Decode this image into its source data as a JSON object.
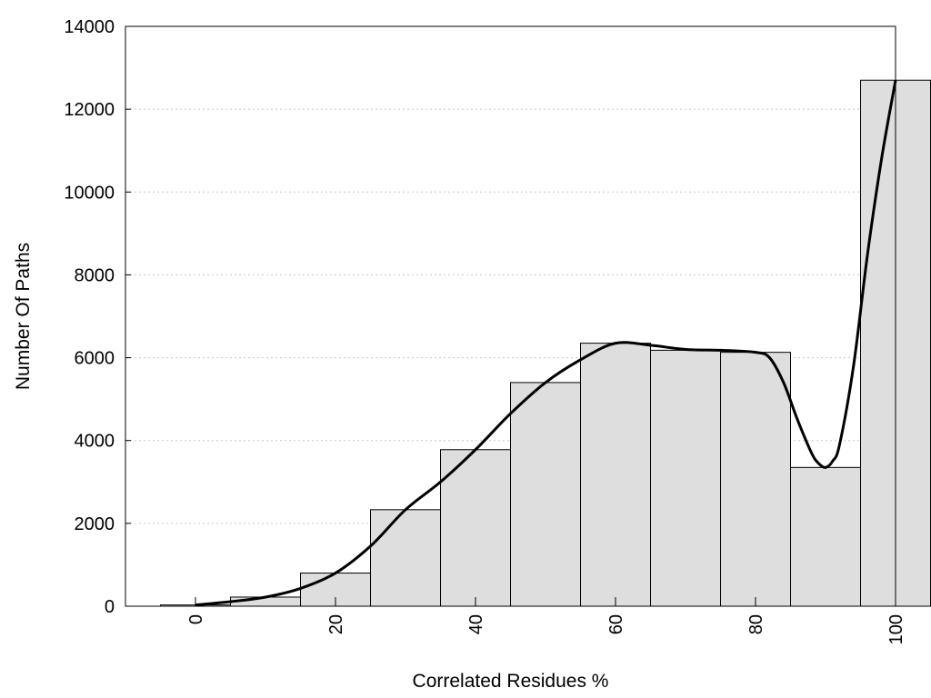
{
  "chart_data": {
    "type": "bar",
    "title": "",
    "xlabel": "Correlated Residues %",
    "ylabel": "Number Of Paths",
    "xlim": [
      -10,
      100
    ],
    "ylim": [
      0,
      14000
    ],
    "grid": "horizontal dotted",
    "x_ticks": [
      0,
      20,
      40,
      60,
      80,
      100
    ],
    "x_tick_labels": [
      "0",
      "20",
      "40",
      "60",
      "80",
      "100"
    ],
    "y_ticks": [
      0,
      2000,
      4000,
      6000,
      8000,
      10000,
      12000,
      14000
    ],
    "y_tick_labels": [
      "0",
      "2000",
      "4000",
      "6000",
      "8000",
      "10000",
      "12000",
      "14000"
    ],
    "bar_width": 10,
    "categories": [
      0,
      10,
      20,
      30,
      40,
      50,
      60,
      70,
      80,
      90,
      100
    ],
    "values": [
      30,
      220,
      800,
      2330,
      3780,
      5400,
      6350,
      6180,
      6130,
      3350,
      12700
    ],
    "curve": {
      "x": [
        0,
        5,
        10,
        15,
        20,
        25,
        30,
        35,
        40,
        45,
        50,
        55,
        60,
        65,
        70,
        75,
        80,
        82,
        84,
        86,
        88,
        89,
        90,
        91,
        92,
        94,
        96,
        98,
        100
      ],
      "y": [
        30,
        110,
        220,
        430,
        800,
        1450,
        2330,
        3000,
        3780,
        4650,
        5400,
        5950,
        6350,
        6300,
        6200,
        6180,
        6130,
        6000,
        5400,
        4500,
        3700,
        3450,
        3350,
        3500,
        3900,
        5800,
        8500,
        10800,
        12700
      ]
    },
    "colors": {
      "bar_fill": "#dedede",
      "bar_stroke": "#000000",
      "curve": "#000000",
      "grid": "#c8c8c8"
    }
  }
}
